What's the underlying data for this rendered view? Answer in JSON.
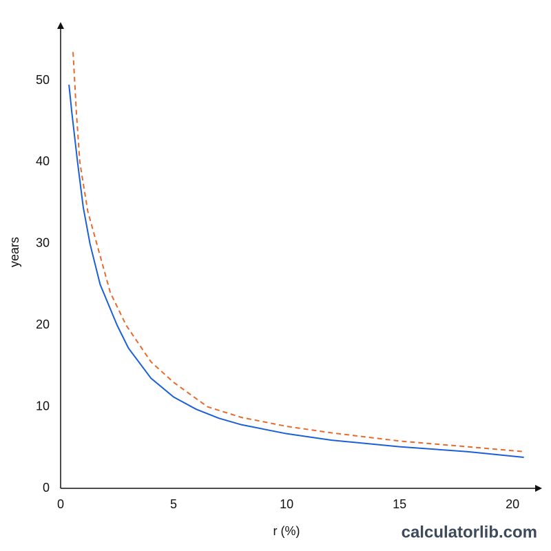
{
  "chart_data": {
    "type": "line",
    "xlabel": "r (%)",
    "ylabel": "years",
    "watermark": "calculatorlib.com",
    "xlim": [
      0,
      21
    ],
    "ylim": [
      0,
      56
    ],
    "xticks": [
      0,
      5,
      10,
      15,
      20
    ],
    "yticks": [
      0,
      10,
      20,
      30,
      40,
      50
    ],
    "grid": false,
    "series": [
      {
        "color": "#1a5fd6",
        "dash": false,
        "x": [
          0.37,
          0.5,
          0.75,
          1,
          1.3,
          1.75,
          2.5,
          3,
          4,
          5,
          6,
          7,
          8,
          10,
          12,
          15,
          18,
          20.5
        ],
        "values": [
          49.5,
          46,
          40,
          34.5,
          30,
          25,
          20,
          17.2,
          13.5,
          11.2,
          9.7,
          8.6,
          7.8,
          6.7,
          5.9,
          5.1,
          4.5,
          3.8
        ]
      },
      {
        "color": "#e8692a",
        "dash": true,
        "x": [
          0.55,
          0.7,
          0.85,
          1.2,
          1.6,
          2.2,
          2.9,
          4,
          5,
          6.5,
          8,
          10,
          12,
          15,
          18,
          20.5
        ],
        "values": [
          53.5,
          46,
          40,
          34,
          30,
          24,
          20,
          15.5,
          13,
          10,
          8.7,
          7.6,
          6.8,
          5.8,
          5.1,
          4.5
        ]
      }
    ]
  }
}
